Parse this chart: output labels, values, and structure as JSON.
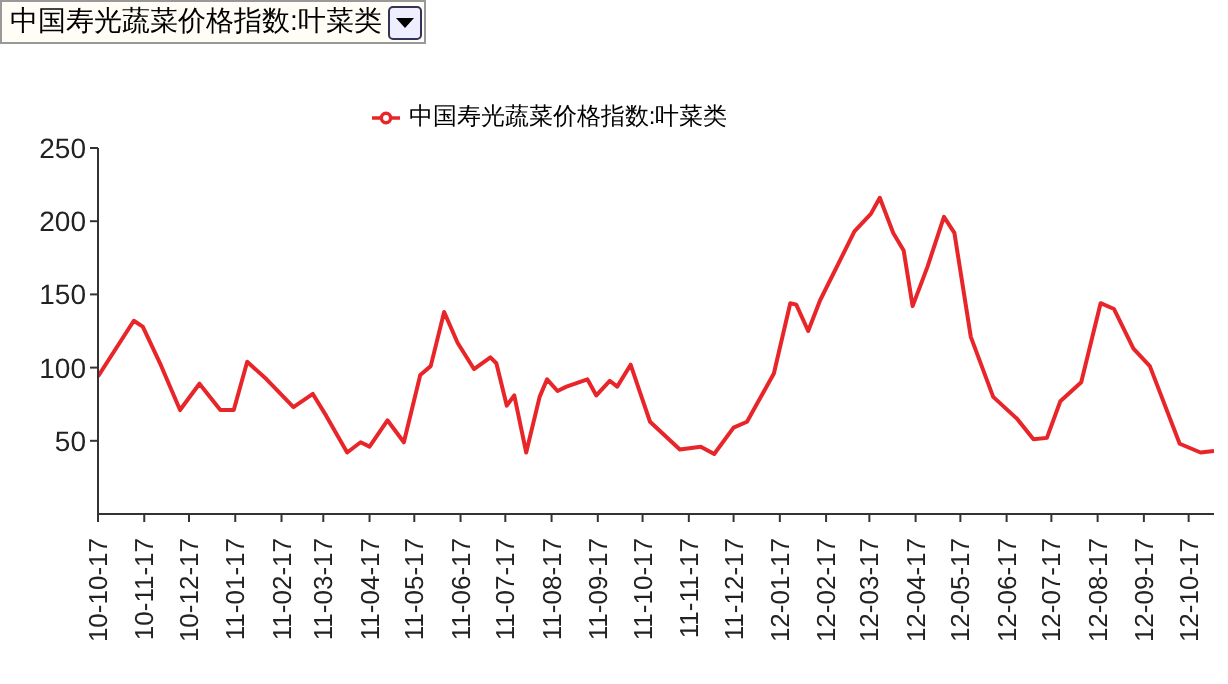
{
  "chart_data": {
    "type": "line",
    "title": "中国寿光蔬菜价格指数:叶菜类",
    "x": [
      "2010-10-17",
      "2010-11-10",
      "2010-11-16",
      "2010-11-28",
      "2010-12-11",
      "2010-12-24",
      "2011-01-07",
      "2011-01-16",
      "2011-01-25",
      "2011-02-07",
      "2011-02-25",
      "2011-03-10",
      "2011-03-19",
      "2011-04-02",
      "2011-04-11",
      "2011-04-17",
      "2011-04-29",
      "2011-05-10",
      "2011-05-21",
      "2011-05-28",
      "2011-06-06",
      "2011-06-15",
      "2011-06-26",
      "2011-07-07",
      "2011-07-11",
      "2011-07-18",
      "2011-07-23",
      "2011-07-31",
      "2011-08-09",
      "2011-08-14",
      "2011-08-21",
      "2011-08-27",
      "2011-09-10",
      "2011-09-16",
      "2011-09-25",
      "2011-09-30",
      "2011-10-09",
      "2011-10-15",
      "2011-10-22",
      "2011-11-11",
      "2011-11-25",
      "2011-12-04",
      "2011-12-17",
      "2011-12-26",
      "2012-01-13",
      "2012-01-24",
      "2012-01-28",
      "2012-02-05",
      "2012-02-13",
      "2012-03-07",
      "2012-03-18",
      "2012-03-24",
      "2012-04-02",
      "2012-04-09",
      "2012-04-15",
      "2012-04-25",
      "2012-05-06",
      "2012-05-13",
      "2012-05-24",
      "2012-06-08",
      "2012-06-24",
      "2012-07-05",
      "2012-07-14",
      "2012-07-23",
      "2012-08-06",
      "2012-08-19",
      "2012-08-28",
      "2012-09-10",
      "2012-09-21",
      "2012-10-11",
      "2012-10-25",
      "2012-11-03"
    ],
    "series": [
      {
        "name": "中国寿光蔬菜价格指数:叶菜类",
        "color": "#e8262a",
        "values": [
          94,
          132,
          128,
          102,
          71,
          89,
          71,
          71,
          104,
          92,
          73,
          82,
          67,
          42,
          49,
          46,
          64,
          49,
          95,
          101,
          138,
          117,
          99,
          107,
          103,
          74,
          81,
          42,
          80,
          92,
          84,
          87,
          92,
          81,
          91,
          87,
          102,
          84,
          63,
          44,
          46,
          41,
          59,
          63,
          96,
          144,
          143,
          125,
          146,
          193,
          205,
          216,
          192,
          180,
          142,
          169,
          203,
          192,
          121,
          80,
          65,
          51,
          52,
          77,
          90,
          144,
          140,
          113,
          101,
          48,
          42,
          43
        ]
      }
    ],
    "xlim": [
      "2010-10-17",
      "2012-11-03"
    ],
    "xticks": [
      {
        "value": "2010-10-17",
        "label": "10-10-17"
      },
      {
        "value": "2010-11-17",
        "label": "10-11-17"
      },
      {
        "value": "2010-12-17",
        "label": "10-12-17"
      },
      {
        "value": "2011-01-17",
        "label": "11-01-17"
      },
      {
        "value": "2011-02-17",
        "label": "11-02-17"
      },
      {
        "value": "2011-03-17",
        "label": "11-03-17"
      },
      {
        "value": "2011-04-17",
        "label": "11-04-17"
      },
      {
        "value": "2011-05-17",
        "label": "11-05-17"
      },
      {
        "value": "2011-06-17",
        "label": "11-06-17"
      },
      {
        "value": "2011-07-17",
        "label": "11-07-17"
      },
      {
        "value": "2011-08-17",
        "label": "11-08-17"
      },
      {
        "value": "2011-09-17",
        "label": "11-09-17"
      },
      {
        "value": "2011-10-17",
        "label": "11-10-17"
      },
      {
        "value": "2011-11-17",
        "label": "11-11-17"
      },
      {
        "value": "2011-12-17",
        "label": "11-12-17"
      },
      {
        "value": "2012-01-17",
        "label": "12-01-17"
      },
      {
        "value": "2012-02-17",
        "label": "12-02-17"
      },
      {
        "value": "2012-03-17",
        "label": "12-03-17"
      },
      {
        "value": "2012-04-17",
        "label": "12-04-17"
      },
      {
        "value": "2012-05-17",
        "label": "12-05-17"
      },
      {
        "value": "2012-06-17",
        "label": "12-06-17"
      },
      {
        "value": "2012-07-17",
        "label": "12-07-17"
      },
      {
        "value": "2012-08-17",
        "label": "12-08-17"
      },
      {
        "value": "2012-09-17",
        "label": "12-09-17"
      },
      {
        "value": "2012-10-17",
        "label": "12-10-17"
      }
    ],
    "ylim": [
      0,
      250
    ],
    "yticks": [
      50,
      100,
      150,
      200,
      250
    ],
    "grid": false,
    "legend": "top",
    "marker": "none",
    "line_style": "solid"
  }
}
